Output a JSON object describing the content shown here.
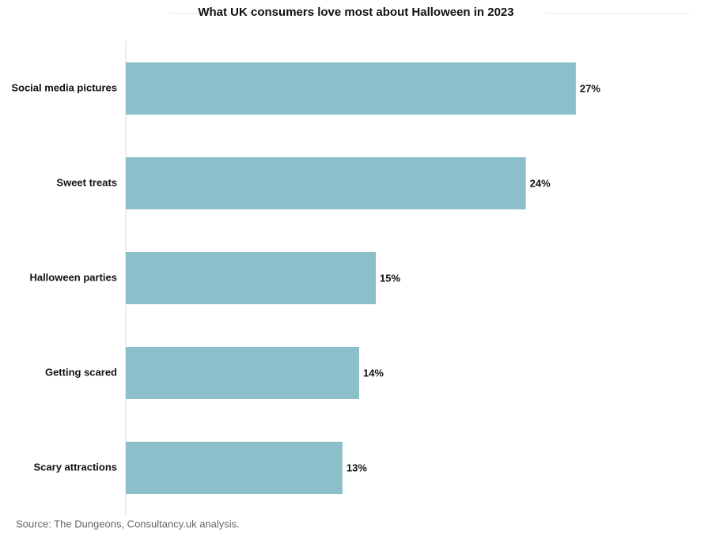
{
  "chart_data": {
    "type": "bar",
    "orientation": "horizontal",
    "title": "What UK consumers love most about Halloween in 2023",
    "categories": [
      "Social media pictures",
      "Sweet treats",
      "Halloween parties",
      "Getting scared",
      "Scary attractions"
    ],
    "values": [
      27,
      24,
      15,
      14,
      13
    ],
    "value_labels": [
      "27%",
      "24%",
      "15%",
      "14%",
      "13%"
    ],
    "color": "#8bbfc9",
    "xlim": [
      0,
      30
    ],
    "source": "Source: The Dungeons, Consultancy.uk analysis."
  }
}
